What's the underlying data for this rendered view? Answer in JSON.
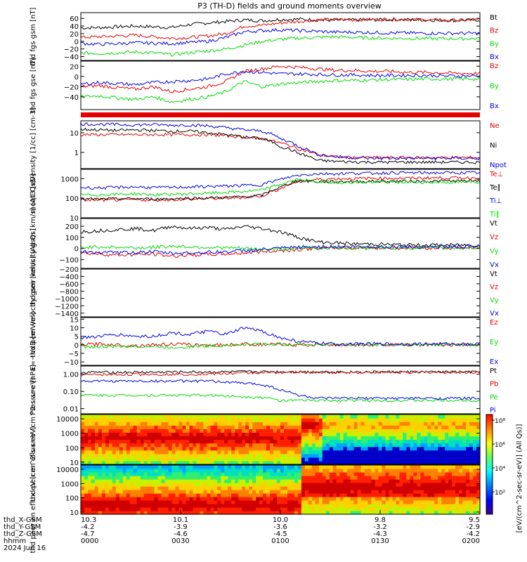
{
  "title": "P3 (TH-D) fields and ground moments overview",
  "colors": {
    "black": "#000000",
    "red": "#e60000",
    "green": "#00dd00",
    "blue": "#0000e6"
  },
  "x_axis": {
    "ticks": [
      {
        "minute": 0,
        "x_gsm": "10.3",
        "y_gsm": "-4.2",
        "z_gsm": "-4.7",
        "hhmm": "0000"
      },
      {
        "minute": 30,
        "x_gsm": "10.1",
        "y_gsm": "-3.9",
        "z_gsm": "-4.6",
        "hhmm": "0030"
      },
      {
        "minute": 60,
        "x_gsm": "10.0",
        "y_gsm": "-3.6",
        "z_gsm": "-4.5",
        "hhmm": "0100"
      },
      {
        "minute": 90,
        "x_gsm": "9.8",
        "y_gsm": "-3.2",
        "z_gsm": "-4.3",
        "hhmm": "0130"
      },
      {
        "minute": 120,
        "x_gsm": "9.5",
        "y_gsm": "-2.9",
        "z_gsm": "-4.2",
        "hhmm": "0200"
      }
    ],
    "row_labels": [
      "thd_X-GSM",
      "thd_Y-GSM",
      "thd_Z-GSM",
      "hhmm"
    ],
    "date": "2024 Jun 16"
  },
  "colorbar": {
    "label": "[eV/(cm^2-sec-sr-eV)] (All Qs)]",
    "tick_labels": [
      "10⁸",
      "10⁶",
      "10⁴",
      "10²"
    ]
  },
  "chart_data": [
    {
      "type": "line",
      "ylabel": "thd fgs gsm [nT]",
      "ylim": [
        -50,
        75
      ],
      "ticks": [
        "60",
        "40",
        "20",
        "0",
        "−20",
        "−40"
      ],
      "series": [
        {
          "name": "Bt",
          "color": "black",
          "values": [
            35,
            36,
            38,
            40,
            38,
            36,
            44,
            48,
            52,
            56,
            54,
            57,
            58,
            56,
            55,
            56,
            56,
            57,
            57,
            56,
            55,
            55,
            56
          ]
        },
        {
          "name": "Bz",
          "color": "red",
          "values": [
            10,
            12,
            14,
            16,
            12,
            8,
            10,
            14,
            20,
            40,
            42,
            48,
            52,
            56,
            57,
            56,
            57,
            58,
            57,
            56,
            55,
            55,
            56
          ]
        },
        {
          "name": "By",
          "color": "green",
          "values": [
            -30,
            -32,
            -30,
            -28,
            -30,
            -35,
            -30,
            -25,
            -20,
            -10,
            0,
            5,
            8,
            10,
            12,
            10,
            9,
            8,
            8,
            7,
            7,
            7,
            7
          ]
        },
        {
          "name": "Bx",
          "color": "blue",
          "values": [
            -5,
            -8,
            -6,
            -4,
            -5,
            -6,
            -3,
            0,
            10,
            25,
            28,
            30,
            28,
            26,
            24,
            24,
            23,
            22,
            22,
            21,
            21,
            21,
            21
          ]
        }
      ]
    },
    {
      "type": "line",
      "ylabel": "thd fgs gse [nT]",
      "ylim": [
        -65,
        30
      ],
      "ticks": [
        "20",
        "0",
        "−20",
        "−40"
      ],
      "series": [
        {
          "name": "Bz",
          "color": "red",
          "values": [
            -20,
            -18,
            -22,
            -25,
            -20,
            -30,
            -25,
            -20,
            -10,
            10,
            15,
            20,
            18,
            15,
            12,
            12,
            10,
            10,
            8,
            8,
            7,
            6,
            6
          ]
        },
        {
          "name": "By",
          "color": "green",
          "values": [
            -40,
            -38,
            -42,
            -45,
            -40,
            -50,
            -45,
            -40,
            -30,
            -10,
            -20,
            -15,
            -12,
            -10,
            -8,
            -8,
            -7,
            -6,
            -6,
            -5,
            -5,
            -5,
            -5
          ]
        },
        {
          "name": "Bx",
          "color": "blue",
          "values": [
            -15,
            -12,
            -14,
            -16,
            -12,
            -10,
            -8,
            -5,
            5,
            10,
            8,
            5,
            5,
            4,
            3,
            3,
            2,
            2,
            2,
            2,
            1,
            1,
            1
          ]
        }
      ]
    },
    {
      "type": "line",
      "ylabel": "Density [1/cc] [cm-3]",
      "ylim": [
        0.15,
        40
      ],
      "log": true,
      "ticks": [
        "10",
        "1"
      ],
      "series": [
        {
          "name": "Ne",
          "color": "red",
          "values": [
            8,
            8,
            8,
            8,
            8,
            8,
            8,
            8,
            7,
            6,
            5,
            3,
            1.5,
            0.8,
            0.6,
            0.55,
            0.55,
            0.55,
            0.55,
            0.55,
            0.55,
            0.55,
            0.55
          ]
        },
        {
          "name": "Ni",
          "color": "black",
          "values": [
            15,
            14,
            13,
            14,
            13,
            12,
            12,
            10,
            8,
            6,
            5,
            2,
            0.9,
            0.4,
            0.35,
            0.33,
            0.32,
            0.32,
            0.32,
            0.32,
            0.32,
            0.32,
            0.32
          ]
        },
        {
          "name": "Npot",
          "color": "blue",
          "values": [
            28,
            27,
            26,
            25,
            26,
            24,
            25,
            22,
            18,
            14,
            12,
            5,
            2,
            0.8,
            0.6,
            0.55,
            0.5,
            0.5,
            0.5,
            0.5,
            0.5,
            0.5,
            0.5
          ]
        }
      ]
    },
    {
      "type": "line",
      "ylabel": "moqt3 [eV]",
      "ylim": [
        10,
        3000
      ],
      "log": true,
      "ticks": [
        "1000",
        "100",
        "10"
      ],
      "series": [
        {
          "name": "Te⊥",
          "color": "red",
          "values": [
            80,
            80,
            82,
            85,
            80,
            85,
            90,
            95,
            100,
            110,
            130,
            300,
            700,
            900,
            1000,
            1000,
            1050,
            1050,
            1050,
            1100,
            1100,
            1100,
            1100
          ]
        },
        {
          "name": "Te∥",
          "color": "black",
          "values": [
            90,
            90,
            92,
            95,
            90,
            95,
            100,
            105,
            110,
            120,
            140,
            350,
            800,
            700,
            700,
            720,
            730,
            740,
            740,
            750,
            760,
            760,
            760
          ]
        },
        {
          "name": "Ti⊥",
          "color": "blue",
          "values": [
            350,
            340,
            360,
            380,
            350,
            360,
            380,
            400,
            420,
            450,
            500,
            900,
            1500,
            1800,
            1800,
            1900,
            1900,
            2000,
            2000,
            2000,
            2000,
            2000,
            2000
          ]
        },
        {
          "name": "Ti∥",
          "color": "green",
          "values": [
            150,
            150,
            160,
            170,
            150,
            160,
            170,
            180,
            200,
            220,
            260,
            500,
            900,
            700,
            650,
            650,
            650,
            660,
            660,
            660,
            660,
            660,
            660
          ]
        }
      ]
    },
    {
      "type": "line",
      "ylabel": "thd peir velocity gsm [km/s] (All Qs)",
      "ylim": [
        -180,
        270
      ],
      "ticks": [
        "200",
        "100",
        "0",
        "−100"
      ],
      "series": [
        {
          "name": "Vt",
          "color": "black",
          "values": [
            150,
            160,
            170,
            180,
            160,
            200,
            180,
            190,
            170,
            200,
            180,
            150,
            100,
            60,
            50,
            40,
            40,
            35,
            30,
            30,
            30,
            30,
            30
          ]
        },
        {
          "name": "Vz",
          "color": "red",
          "values": [
            -40,
            -50,
            -60,
            -55,
            -50,
            -70,
            -60,
            -55,
            -50,
            -40,
            -30,
            -20,
            -10,
            0,
            5,
            5,
            5,
            5,
            5,
            5,
            5,
            5,
            5
          ]
        },
        {
          "name": "Vy",
          "color": "green",
          "values": [
            10,
            15,
            10,
            5,
            10,
            20,
            15,
            10,
            5,
            0,
            -10,
            -5,
            0,
            5,
            5,
            5,
            5,
            5,
            5,
            5,
            5,
            5,
            5
          ]
        },
        {
          "name": "Vx",
          "color": "blue",
          "values": [
            -30,
            -35,
            -40,
            -35,
            -30,
            -45,
            -40,
            -35,
            -30,
            -20,
            -10,
            0,
            10,
            15,
            15,
            15,
            15,
            15,
            15,
            15,
            15,
            15,
            15
          ]
        }
      ]
    },
    {
      "type": "line",
      "ylabel": "thd peer velocity gsm [km/s] (All Qs)",
      "ylim": [
        -1500,
        -200
      ],
      "ticks": [
        "−200",
        "−400",
        "−600",
        "−800",
        "−1000",
        "−1200",
        "−1400"
      ],
      "series": [
        {
          "name": "Vt",
          "color": "black",
          "values": []
        },
        {
          "name": "Vz",
          "color": "red",
          "values": []
        },
        {
          "name": "Vy",
          "color": "green",
          "values": []
        },
        {
          "name": "Vx",
          "color": "blue",
          "values": []
        }
      ]
    },
    {
      "type": "line",
      "ylabel": "E=−VxB [mV/m]",
      "ylim": [
        -12,
        16
      ],
      "ticks": [
        "15",
        "10",
        "5",
        "0",
        "−5",
        "−10"
      ],
      "series": [
        {
          "name": "Ez",
          "color": "red",
          "values": [
            0,
            0.5,
            0,
            -0.5,
            0,
            0.5,
            0,
            -0.3,
            0,
            0.5,
            0.2,
            0,
            0,
            0,
            0,
            0,
            0,
            0,
            0,
            0,
            0,
            0,
            0
          ]
        },
        {
          "name": "Ey",
          "color": "green",
          "values": [
            -1,
            -1.2,
            -1,
            -0.8,
            -1,
            -1.5,
            -1,
            -0.5,
            -0.3,
            0,
            0.5,
            0.3,
            0.2,
            0.2,
            0.1,
            0.1,
            0.1,
            0.1,
            0.1,
            0.1,
            0.1,
            0.1,
            0.1
          ]
        },
        {
          "name": "Ex",
          "color": "blue",
          "values": [
            4,
            5,
            6,
            5,
            5,
            7,
            6,
            8,
            6,
            10,
            8,
            4,
            2,
            1,
            0.5,
            0.5,
            0.5,
            0.5,
            0.5,
            0.5,
            0.5,
            0.5,
            0.5
          ]
        }
      ]
    },
    {
      "type": "line",
      "ylabel": "Pressure [nPa]",
      "ylim": [
        0.005,
        3
      ],
      "log": true,
      "ticks": [
        "1.00",
        "0.10",
        "0.01"
      ],
      "series": [
        {
          "name": "Pt",
          "color": "black",
          "values": [
            1.3,
            1.3,
            1.3,
            1.3,
            1.3,
            1.35,
            1.35,
            1.35,
            1.35,
            1.4,
            1.4,
            1.4,
            1.4,
            1.35,
            1.35,
            1.35,
            1.35,
            1.35,
            1.35,
            1.35,
            1.35,
            1.35,
            1.35
          ]
        },
        {
          "name": "Pb",
          "color": "red",
          "values": [
            0.9,
            0.95,
            0.95,
            1,
            1,
            1,
            1,
            1.05,
            1.1,
            1.2,
            1.25,
            1.3,
            1.3,
            1.3,
            1.3,
            1.3,
            1.3,
            1.3,
            1.3,
            1.3,
            1.3,
            1.3,
            1.3
          ]
        },
        {
          "name": "Pe",
          "color": "green",
          "values": [
            0.06,
            0.06,
            0.06,
            0.06,
            0.06,
            0.06,
            0.06,
            0.06,
            0.055,
            0.05,
            0.045,
            0.03,
            0.03,
            0.03,
            0.03,
            0.03,
            0.03,
            0.03,
            0.03,
            0.03,
            0.03,
            0.03,
            0.03
          ]
        },
        {
          "name": "Pi",
          "color": "blue",
          "values": [
            0.4,
            0.4,
            0.4,
            0.4,
            0.4,
            0.4,
            0.4,
            0.4,
            0.35,
            0.3,
            0.25,
            0.12,
            0.06,
            0.04,
            0.04,
            0.04,
            0.04,
            0.04,
            0.04,
            0.04,
            0.04,
            0.04,
            0.04
          ]
        }
      ]
    },
    {
      "type": "heatmap",
      "ylabel": "thd peir en eflux eV (cm^2-s-sr-eV)",
      "log": true,
      "ylim": [
        7,
        20000
      ],
      "ticks": [
        "10000",
        "1000",
        "100",
        "10"
      ]
    },
    {
      "type": "heatmap",
      "ylabel": "thd peer en eflux eV (cm^2-s-sr-eV)",
      "log": true,
      "ylim": [
        7,
        20000
      ],
      "ticks": [
        "10000",
        "1000",
        "100",
        "10"
      ]
    }
  ]
}
